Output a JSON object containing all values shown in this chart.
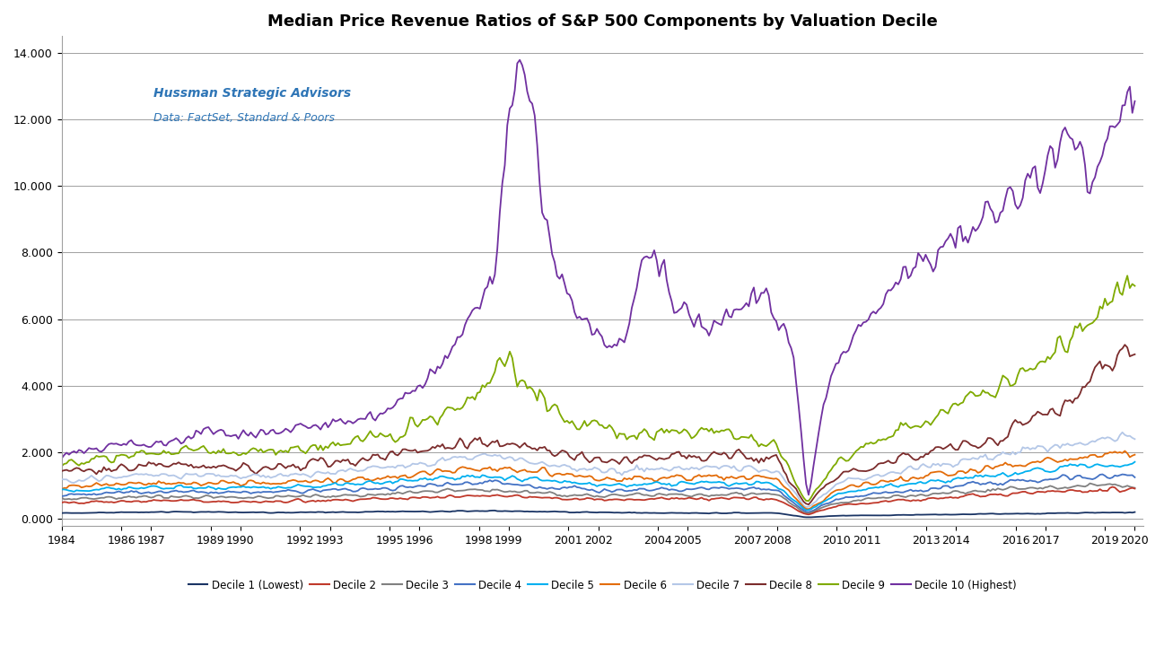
{
  "title": "Median Price Revenue Ratios of S&P 500 Components by Valuation Decile",
  "subtitle1": "Hussman Strategic Advisors",
  "subtitle2": "Data: FactSet, Standard & Poors",
  "ylim_bottom": -0.2,
  "ylim_top": 14.5,
  "yticks": [
    0.0,
    2.0,
    4.0,
    6.0,
    8.0,
    10.0,
    12.0,
    14.0
  ],
  "xtick_years": [
    1984,
    1986,
    1987,
    1989,
    1990,
    1992,
    1993,
    1995,
    1996,
    1998,
    1999,
    2001,
    2002,
    2004,
    2005,
    2007,
    2008,
    2010,
    2011,
    2013,
    2014,
    2016,
    2017,
    2019,
    2020
  ],
  "decile_names": [
    "Decile 1 (Lowest)",
    "Decile 2",
    "Decile 3",
    "Decile 4",
    "Decile 5",
    "Decile 6",
    "Decile 7",
    "Decile 8",
    "Decile 9",
    "Decile 10 (Highest)"
  ],
  "colors": [
    "#1a3464",
    "#c0392b",
    "#808080",
    "#4472c4",
    "#00b0f0",
    "#e36c09",
    "#b4c7e7",
    "#7b2c2c",
    "#7faa00",
    "#7030a0"
  ],
  "background_color": "#ffffff",
  "grid_color": "#a0a0a0"
}
